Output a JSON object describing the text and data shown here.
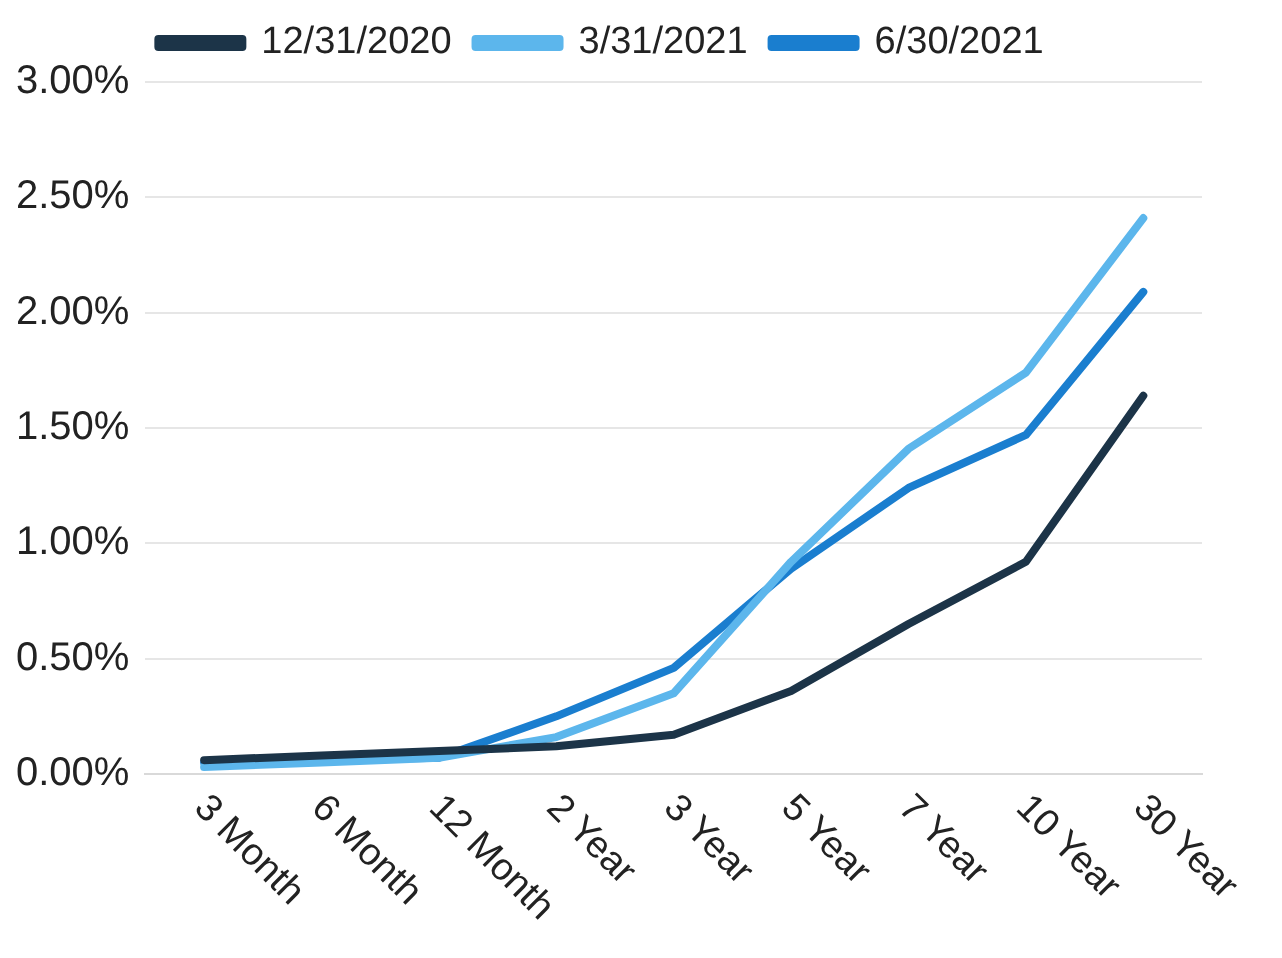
{
  "chart_data": {
    "type": "line",
    "categories": [
      "3 Month",
      "6 Month",
      "12 Month",
      "2 Year",
      "3 Year",
      "5 Year",
      "7 Year",
      "10 Year",
      "30 Year"
    ],
    "series": [
      {
        "name": "12/31/2020",
        "color": "#1c3448",
        "values": [
          0.06,
          0.08,
          0.1,
          0.12,
          0.17,
          0.36,
          0.65,
          0.92,
          1.64
        ]
      },
      {
        "name": "3/31/2021",
        "color": "#5cb6ec",
        "values": [
          0.03,
          0.05,
          0.07,
          0.16,
          0.35,
          0.92,
          1.41,
          1.74,
          2.41
        ]
      },
      {
        "name": "6/30/2021",
        "color": "#1a7ecf",
        "values": [
          0.05,
          0.06,
          0.07,
          0.25,
          0.46,
          0.89,
          1.24,
          1.47,
          2.09
        ]
      }
    ],
    "ylim": [
      0,
      3
    ],
    "yticks": [
      {
        "value": 0,
        "label": "0.00%"
      },
      {
        "value": 0.5,
        "label": "0.50%"
      },
      {
        "value": 1,
        "label": "1.00%"
      },
      {
        "value": 1.5,
        "label": "1.50%"
      },
      {
        "value": 2,
        "label": "2.00%"
      },
      {
        "value": 2.5,
        "label": "2.50%"
      },
      {
        "value": 3,
        "label": "3.00%"
      }
    ],
    "grid": "y",
    "legend": "top",
    "marker": "none",
    "line_style": "solid"
  }
}
